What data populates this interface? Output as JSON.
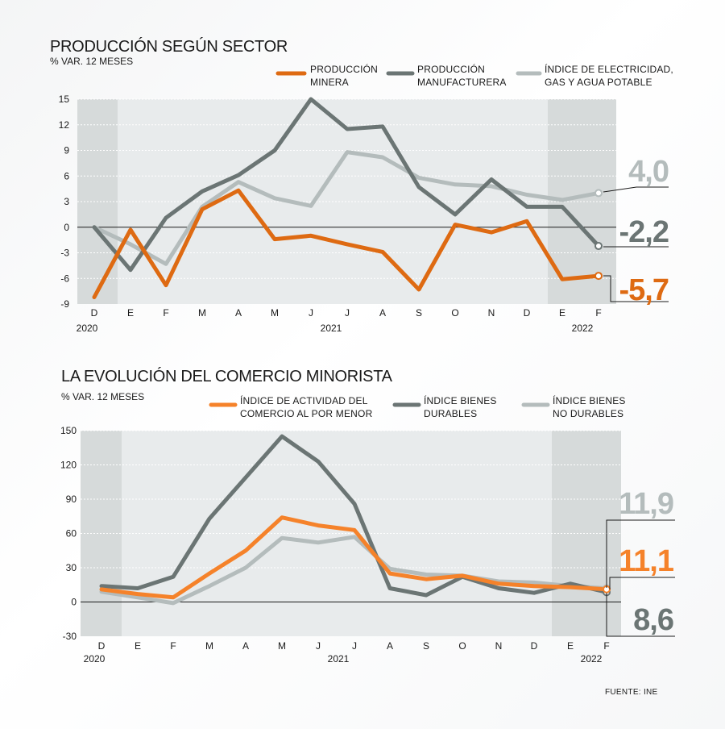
{
  "charts": [
    {
      "title": "PRODUCCIÓN SEGÚN SECTOR",
      "unit": "% VAR. 12 MESES",
      "chart_data": {
        "type": "line",
        "categories": [
          "D",
          "E",
          "F",
          "M",
          "A",
          "M",
          "J",
          "J",
          "A",
          "S",
          "O",
          "N",
          "D",
          "E",
          "F"
        ],
        "years": [
          "2020",
          "2021",
          "2022"
        ],
        "ylim": [
          -9,
          15
        ],
        "yticks": [
          "15",
          "12",
          "9",
          "6",
          "3",
          "0",
          "-3",
          "-6",
          "-9"
        ],
        "ytick_values": [
          15,
          12,
          9,
          6,
          3,
          0,
          -3,
          -6,
          -9
        ],
        "series": [
          {
            "key": "electricidad",
            "legend": [
              "ÍNDICE DE ELECTRICIDAD,",
              "GAS Y AGUA POTABLE"
            ],
            "color": "#b4bcbc",
            "values": [
              0,
              -2,
              -4.3,
              2.4,
              5.3,
              3.4,
              2.5,
              8.8,
              8.2,
              5.8,
              5,
              4.8,
              3.8,
              3.2,
              4.0
            ],
            "end_label": "4,0"
          },
          {
            "key": "manufacturera",
            "legend": [
              "PRODUCCIÓN",
              "MANUFACTURERA"
            ],
            "color": "#6b7574",
            "values": [
              0,
              -5,
              1.1,
              4.2,
              6.1,
              9,
              15,
              11.5,
              11.8,
              4.7,
              1.5,
              5.6,
              2.4,
              2.4,
              -2.2
            ],
            "end_label": "-2,2"
          },
          {
            "key": "minera",
            "legend": [
              "PRODUCCIÓN",
              "MINERA"
            ],
            "color": "#de6a12",
            "values": [
              -8.2,
              -0.3,
              -6.8,
              2.1,
              4.3,
              -1.4,
              -1,
              -2,
              -2.9,
              -7.3,
              0.3,
              -0.6,
              0.7,
              -6.1,
              -5.7
            ],
            "end_label": "-5,7"
          }
        ]
      }
    },
    {
      "title": "LA EVOLUCIÓN DEL COMERCIO MINORISTA",
      "unit": "% VAR. 12 MESES",
      "chart_data": {
        "type": "line",
        "categories": [
          "D",
          "E",
          "F",
          "M",
          "A",
          "M",
          "J",
          "J",
          "A",
          "S",
          "O",
          "N",
          "D",
          "E",
          "F"
        ],
        "years": [
          "2020",
          "2021",
          "2022"
        ],
        "ylim": [
          -30,
          150
        ],
        "yticks": [
          "150",
          "120",
          "90",
          "60",
          "30",
          "0",
          "-30"
        ],
        "ytick_values": [
          150,
          120,
          90,
          60,
          30,
          0,
          -30
        ],
        "series": [
          {
            "key": "no_durables",
            "legend": [
              "ÍNDICE BIENES",
              "NO DURABLES"
            ],
            "color": "#b4bcbc",
            "values": [
              9,
              4,
              -1,
              14,
              30,
              56,
              52,
              57,
              29,
              24,
              23,
              18,
              17,
              14,
              11.9
            ],
            "end_label": "11,9"
          },
          {
            "key": "durables",
            "legend": [
              "ÍNDICE BIENES",
              "DURABLES"
            ],
            "color": "#6b7574",
            "values": [
              14,
              12,
              22,
              73,
              109,
              145,
              123,
              86,
              12,
              6,
              22,
              12,
              8,
              16,
              8.6
            ],
            "end_label": "8,6"
          },
          {
            "key": "actividad",
            "legend": [
              "ÍNDICE DE ACTIVIDAD DEL",
              "COMERCIO AL POR MENOR"
            ],
            "color": "#f5822a",
            "values": [
              11,
              7,
              4,
              25,
              45,
              74,
              67,
              63,
              25,
              20,
              23,
              16,
              14,
              13,
              11.1
            ],
            "end_label": "11,1"
          }
        ]
      }
    }
  ],
  "source": "FUENTE: INE"
}
